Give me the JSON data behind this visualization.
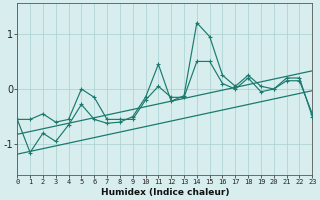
{
  "x": [
    0,
    1,
    2,
    3,
    4,
    5,
    6,
    7,
    8,
    9,
    10,
    11,
    12,
    13,
    14,
    15,
    16,
    17,
    18,
    19,
    20,
    21,
    22,
    23
  ],
  "line_main": [
    -0.55,
    -1.15,
    -0.8,
    -0.95,
    -0.65,
    -0.28,
    -0.55,
    -0.62,
    -0.6,
    -0.5,
    -0.15,
    0.45,
    -0.22,
    -0.12,
    1.2,
    0.95,
    0.25,
    0.05,
    0.25,
    0.05,
    0.0,
    0.2,
    0.2,
    -0.5
  ],
  "line_secondary": [
    -0.55,
    -0.55,
    -0.45,
    -0.6,
    -0.55,
    0.0,
    -0.15,
    -0.55,
    -0.55,
    -0.55,
    -0.2,
    0.05,
    -0.15,
    -0.15,
    0.5,
    0.5,
    0.1,
    0.0,
    0.2,
    -0.05,
    0.0,
    0.15,
    0.15,
    -0.45
  ],
  "line_upper": [
    -0.82,
    -0.77,
    -0.72,
    -0.67,
    -0.62,
    -0.57,
    -0.52,
    -0.47,
    -0.42,
    -0.37,
    -0.32,
    -0.27,
    -0.22,
    -0.17,
    -0.12,
    -0.07,
    -0.02,
    0.03,
    0.08,
    0.13,
    0.18,
    0.23,
    0.28,
    0.33
  ],
  "line_lower": [
    -1.18,
    -1.13,
    -1.08,
    -1.03,
    -0.98,
    -0.93,
    -0.88,
    -0.83,
    -0.78,
    -0.73,
    -0.68,
    -0.63,
    -0.58,
    -0.53,
    -0.48,
    -0.43,
    -0.38,
    -0.33,
    -0.28,
    -0.23,
    -0.18,
    -0.13,
    -0.08,
    -0.03
  ],
  "bg_color": "#d8eeee",
  "line_color": "#1a7a6e",
  "grid_color": "#aacfcf",
  "xlabel": "Humidex (Indice chaleur)",
  "yticks": [
    -1,
    0,
    1
  ],
  "xticks": [
    0,
    1,
    2,
    3,
    4,
    5,
    6,
    7,
    8,
    9,
    10,
    11,
    12,
    13,
    14,
    15,
    16,
    17,
    18,
    19,
    20,
    21,
    22,
    23
  ],
  "xlim": [
    0,
    23
  ],
  "ylim": [
    -1.55,
    1.55
  ]
}
